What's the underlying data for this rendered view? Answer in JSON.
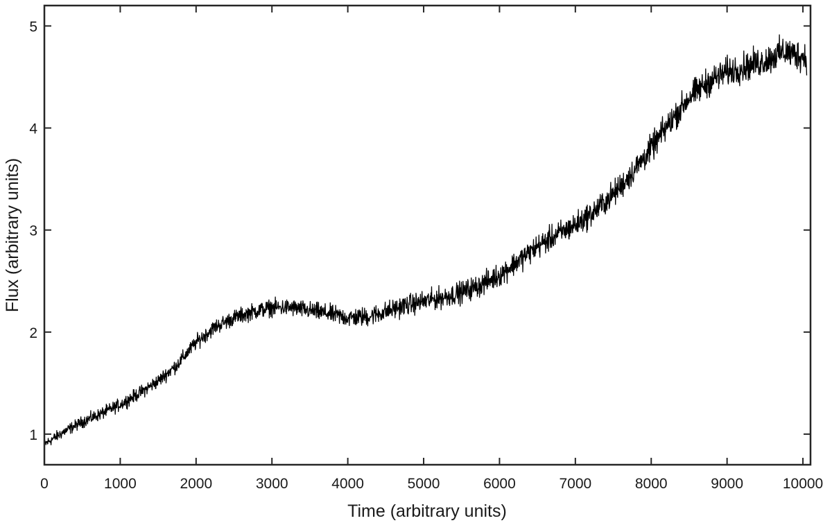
{
  "chart_data": {
    "type": "line",
    "title": "",
    "xlabel": "Time  (arbitrary units)",
    "ylabel": "Flux  (arbitrary units)",
    "xlim": [
      0,
      10100
    ],
    "ylim": [
      0.7,
      5.2
    ],
    "xticks": [
      0,
      1000,
      2000,
      3000,
      4000,
      5000,
      6000,
      7000,
      8000,
      9000,
      10000
    ],
    "xtick_labels": [
      "0",
      "1000",
      "2000",
      "3000",
      "4000",
      "5000",
      "6000",
      "7000",
      "8000",
      "9000",
      "10000"
    ],
    "yticks": [
      1,
      2,
      3,
      4,
      5
    ],
    "ytick_labels": [
      "1",
      "2",
      "3",
      "4",
      "5"
    ],
    "grid": false,
    "legend": "none",
    "line_color": "#000000",
    "series": [
      {
        "x": [
          0,
          250,
          500,
          750,
          1000,
          1250,
          1500,
          1750,
          2000,
          2250,
          2500,
          2750,
          3000,
          3250,
          3500,
          3750,
          4000,
          4250,
          4500,
          4750,
          5000,
          5250,
          5500,
          5750,
          6000,
          6250,
          6500,
          6750,
          7000,
          7250,
          7500,
          7750,
          8000,
          8250,
          8500,
          8750,
          9000,
          9250,
          9500,
          9750,
          10000
        ],
        "values": [
          0.9,
          1.02,
          1.12,
          1.2,
          1.29,
          1.4,
          1.52,
          1.68,
          1.9,
          2.05,
          2.14,
          2.2,
          2.24,
          2.24,
          2.21,
          2.18,
          2.14,
          2.15,
          2.2,
          2.26,
          2.3,
          2.34,
          2.39,
          2.46,
          2.56,
          2.7,
          2.84,
          2.95,
          3.05,
          3.18,
          3.35,
          3.56,
          3.8,
          4.06,
          4.3,
          4.45,
          4.55,
          4.6,
          4.66,
          4.75,
          4.7
        ]
      }
    ]
  }
}
